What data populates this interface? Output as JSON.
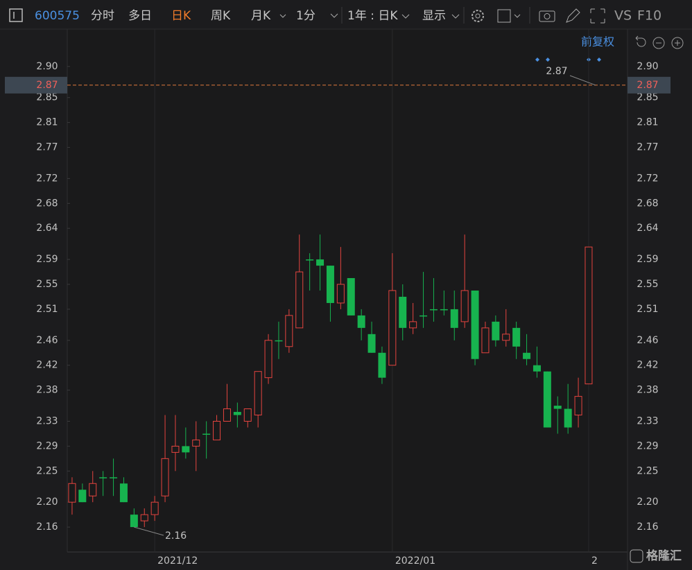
{
  "toolbar": {
    "code": "600575",
    "tabs": [
      "分时",
      "多日",
      "日K",
      "周K",
      "月K"
    ],
    "interval": "1分",
    "range": "1年 : 日K",
    "display": "显示",
    "vs": "VS",
    "f10": "F10"
  },
  "adjust": "前复权",
  "watermark": "格隆汇",
  "chart_data": {
    "type": "candlestick",
    "categories": [
      null,
      null,
      null,
      null,
      null,
      null,
      null,
      null,
      "2021/12",
      null,
      null,
      null,
      null,
      null,
      null,
      null,
      null,
      null,
      null,
      null,
      null,
      null,
      null,
      null,
      null,
      null,
      null,
      null,
      null,
      null,
      null,
      "2022/01",
      null,
      null,
      null,
      null,
      null,
      null,
      null,
      null,
      null,
      null,
      null,
      null,
      null,
      null,
      null,
      null,
      null,
      null,
      "2"
    ],
    "open": [
      2.2,
      2.22,
      2.21,
      2.24,
      2.24,
      2.23,
      2.18,
      2.17,
      2.18,
      2.21,
      2.28,
      2.29,
      2.29,
      2.31,
      2.3,
      2.33,
      2.345,
      2.33,
      2.34,
      2.4,
      2.46,
      2.45,
      2.48,
      2.59,
      2.59,
      2.58,
      2.52,
      2.56,
      2.5,
      2.47,
      2.44,
      2.42,
      2.53,
      2.48,
      2.5,
      2.51,
      2.51,
      2.51,
      2.49,
      2.54,
      2.44,
      2.49,
      2.46,
      2.48,
      2.44,
      2.42,
      2.41,
      2.355,
      2.35,
      2.34,
      2.39
    ],
    "high": [
      2.24,
      2.23,
      2.25,
      2.25,
      2.27,
      2.24,
      2.19,
      2.19,
      2.21,
      2.34,
      2.34,
      2.32,
      2.33,
      2.33,
      2.34,
      2.39,
      2.36,
      2.35,
      2.41,
      2.47,
      2.49,
      2.51,
      2.63,
      2.6,
      2.63,
      2.58,
      2.61,
      2.56,
      2.51,
      2.49,
      2.45,
      2.6,
      2.55,
      2.52,
      2.57,
      2.56,
      2.54,
      2.54,
      2.63,
      2.54,
      2.49,
      2.5,
      2.51,
      2.49,
      2.47,
      2.45,
      2.41,
      2.37,
      2.39,
      2.4,
      2.61
    ],
    "low": [
      2.18,
      2.2,
      2.2,
      2.21,
      2.21,
      2.2,
      2.16,
      2.16,
      2.17,
      2.2,
      2.25,
      2.27,
      2.25,
      2.27,
      2.3,
      2.33,
      2.32,
      2.32,
      2.32,
      2.39,
      2.43,
      2.44,
      2.48,
      2.54,
      2.54,
      2.49,
      2.51,
      2.5,
      2.46,
      2.44,
      2.39,
      2.42,
      2.46,
      2.47,
      2.48,
      2.49,
      2.5,
      2.46,
      2.48,
      2.42,
      2.44,
      2.45,
      2.45,
      2.43,
      2.42,
      2.4,
      2.32,
      2.31,
      2.31,
      2.32,
      2.39
    ],
    "close": [
      2.23,
      2.2,
      2.23,
      2.24,
      2.24,
      2.2,
      2.16,
      2.18,
      2.2,
      2.27,
      2.29,
      2.28,
      2.3,
      2.31,
      2.33,
      2.35,
      2.34,
      2.35,
      2.41,
      2.46,
      2.46,
      2.5,
      2.57,
      2.59,
      2.58,
      2.52,
      2.55,
      2.5,
      2.48,
      2.44,
      2.4,
      2.54,
      2.48,
      2.49,
      2.5,
      2.51,
      2.51,
      2.48,
      2.54,
      2.43,
      2.48,
      2.46,
      2.47,
      2.45,
      2.43,
      2.41,
      2.32,
      2.35,
      2.32,
      2.37,
      2.61
    ],
    "ylim": [
      2.12,
      2.96
    ],
    "yticks": [
      {
        "value": 2.9,
        "label": "2.90"
      },
      2.85,
      2.81,
      2.77,
      2.72,
      2.68,
      2.64,
      2.59,
      2.55,
      2.51,
      2.46,
      2.42,
      2.38,
      2.33,
      2.29,
      2.25,
      {
        "value": 2.2,
        "label": "2.20"
      },
      2.16
    ],
    "price_line": 2.87,
    "up_color": "#e5443f",
    "down_color": "#17b34f",
    "price_line_color": "#e07a3c"
  }
}
